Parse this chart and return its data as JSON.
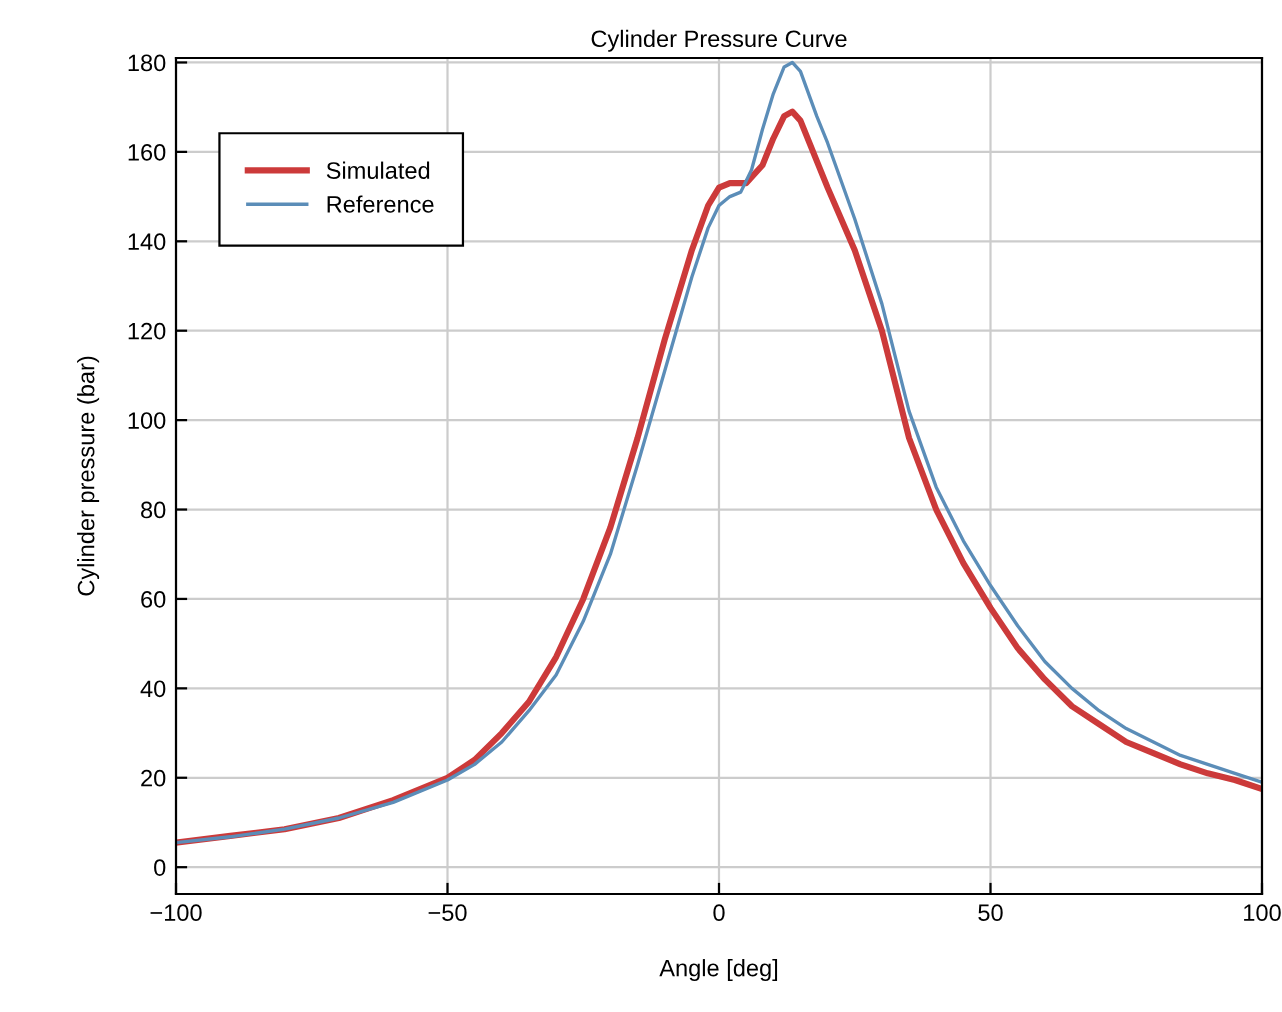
{
  "chart_data": {
    "type": "line",
    "title": "Cylinder Pressure Curve",
    "xlabel": "Angle [deg]",
    "ylabel": "Cylinder pressure (bar)",
    "xlim": [
      -100,
      100
    ],
    "xticks": [
      {
        "value": -100,
        "label": "−100"
      },
      {
        "value": -50,
        "label": "−50"
      },
      0,
      50,
      100
    ],
    "ylim": [
      -6,
      181
    ],
    "yticks": [
      0,
      20,
      40,
      60,
      80,
      100,
      120,
      140,
      160,
      180
    ],
    "grid": true,
    "legend": "top left",
    "marker": "none",
    "line_style": "solid",
    "series": [
      {
        "name": "Simulated",
        "color": "#cc3a3a",
        "x": [
          -100,
          -90,
          -80,
          -70,
          -60,
          -50,
          -45,
          -40,
          -35,
          -30,
          -25,
          -20,
          -15,
          -10,
          -5,
          -2,
          0,
          2,
          5,
          8,
          10,
          12,
          13.5,
          15,
          18,
          20,
          25,
          30,
          35,
          40,
          45,
          50,
          55,
          60,
          65,
          70,
          75,
          80,
          85,
          90,
          95,
          100
        ],
        "values": [
          5.5,
          7,
          8.5,
          11,
          15,
          20,
          24,
          30,
          37,
          47,
          60,
          76,
          96,
          118,
          138,
          148,
          152,
          153,
          153,
          157,
          163,
          168,
          169,
          167,
          158,
          152,
          138,
          120,
          96,
          80,
          68,
          58,
          49,
          42,
          36,
          32,
          28,
          25.5,
          23,
          21,
          19.5,
          17.5
        ]
      },
      {
        "name": "Reference",
        "color": "#5b8db8",
        "x": [
          -100,
          -90,
          -80,
          -70,
          -60,
          -50,
          -45,
          -40,
          -35,
          -30,
          -25,
          -20,
          -15,
          -10,
          -5,
          -2,
          0,
          2,
          4,
          6,
          8,
          10,
          12,
          13.5,
          15,
          18,
          20,
          25,
          30,
          35,
          40,
          45,
          50,
          55,
          60,
          65,
          70,
          75,
          80,
          85,
          90,
          95,
          100
        ],
        "values": [
          5.5,
          6.8,
          8.5,
          11,
          14.5,
          19.5,
          23,
          28,
          35,
          43,
          55,
          70,
          90,
          111,
          132,
          143,
          148,
          150,
          151,
          156,
          165,
          173,
          179,
          180,
          178,
          168,
          162,
          145,
          126,
          102,
          85,
          73,
          63,
          54,
          46,
          40,
          35,
          31,
          28,
          25,
          23,
          21,
          19
        ]
      }
    ]
  }
}
